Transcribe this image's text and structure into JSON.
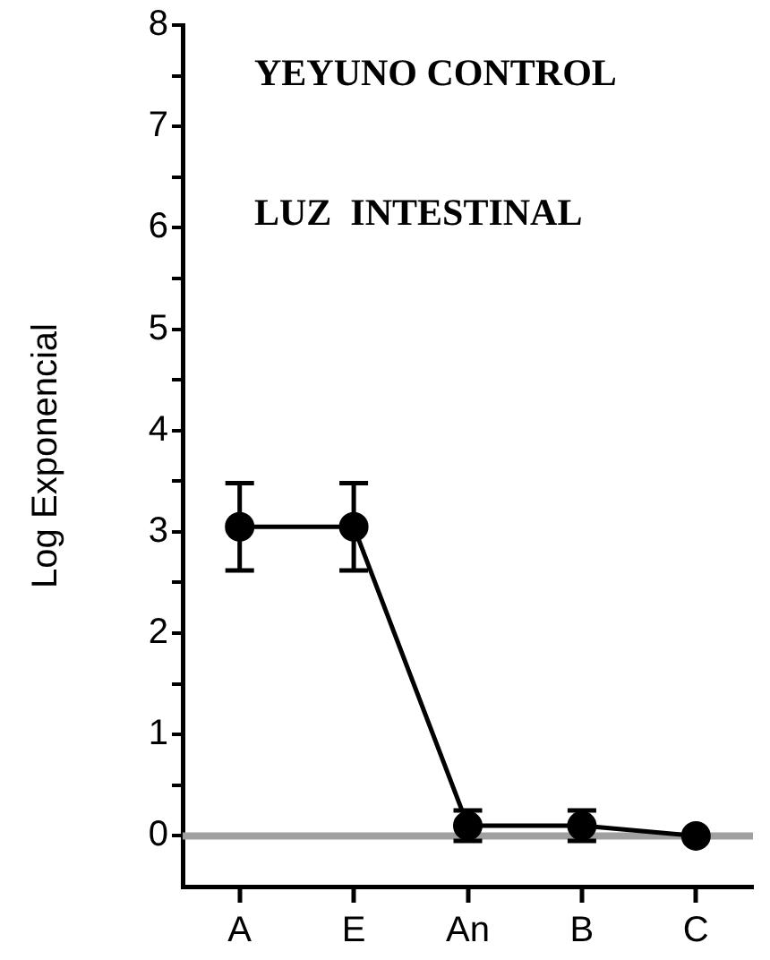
{
  "chart_data": {
    "type": "line",
    "ylabel": "Log Exponencial",
    "annotations": [
      "YEYUNO CONTROL",
      "LUZ  INTESTINAL"
    ],
    "categories": [
      "A",
      "E",
      "An",
      "B",
      "C"
    ],
    "series": [
      {
        "color": "#000000",
        "values": [
          3.05,
          3.05,
          0.1,
          0.1,
          0
        ],
        "errors": [
          0.43,
          0.43,
          0.15,
          0.15,
          null
        ]
      }
    ],
    "ylim": [
      -0.5,
      8
    ],
    "yticks": [
      0,
      {
        "value": 0.5,
        "label": null
      },
      1,
      {
        "value": 1.5,
        "label": null
      },
      2,
      {
        "value": 2.5,
        "label": null
      },
      3,
      {
        "value": 3.5,
        "label": null
      },
      4,
      {
        "value": 4.5,
        "label": null
      },
      5,
      {
        "value": 5.5,
        "label": null
      },
      6,
      {
        "value": 6.5,
        "label": null
      },
      7,
      {
        "value": 7.5,
        "label": null
      },
      8
    ],
    "ref_lines": [
      {
        "axis": "y",
        "value": 0,
        "color": "#a0a0a0"
      }
    ],
    "grid": false,
    "legend": false,
    "marker": "circle",
    "line_style": "solid"
  }
}
